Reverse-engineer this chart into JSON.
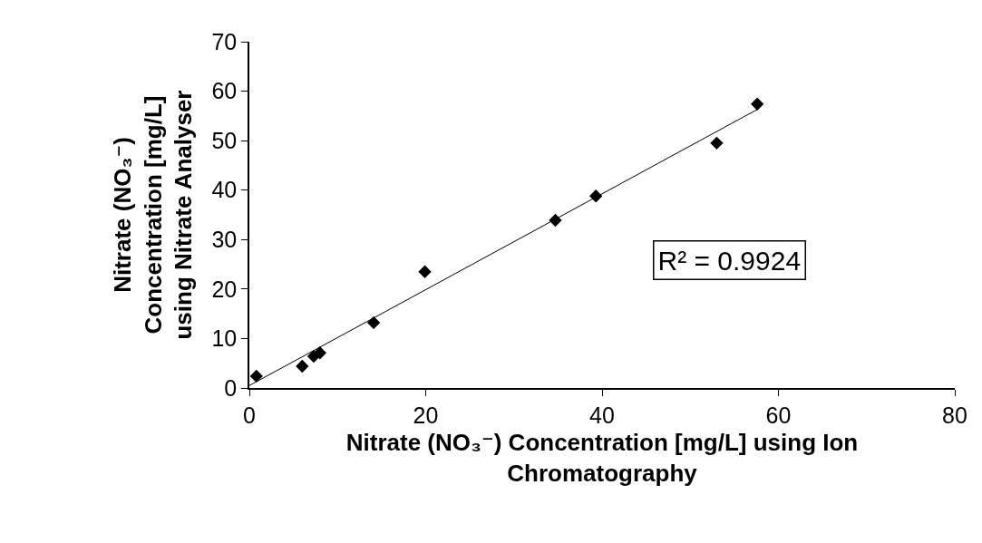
{
  "chart_data": {
    "type": "scatter",
    "xlabel": "Nitrate (NO₃⁻) Concentration [mg/L] using Ion\nChromatography",
    "ylabel": "Nitrate (NO₃⁻)\nConcentration [mg/L]\nusing Nitrate Analyser",
    "xlim": [
      0,
      80
    ],
    "xticks": [
      0,
      20,
      40,
      60,
      80
    ],
    "ylim": [
      0,
      70
    ],
    "yticks": [
      0,
      10,
      20,
      30,
      40,
      50,
      60,
      70
    ],
    "grid": false,
    "marker": "diamond",
    "annotations": [
      "R² = 0.9924"
    ],
    "series": [
      {
        "color": "#000000",
        "x": [
          0.8,
          6.0,
          7.3,
          8.0,
          14.1,
          19.9,
          34.7,
          39.3,
          53.0,
          57.6
        ],
        "values": [
          2.4,
          4.4,
          6.4,
          7.1,
          13.2,
          23.5,
          33.9,
          38.8,
          49.5,
          57.4
        ]
      },
      {
        "type": "line",
        "color": "#000000",
        "line_style": "solid",
        "marker": "none",
        "x": [
          0,
          57.7
        ],
        "values": [
          0.5,
          56.4
        ]
      }
    ]
  }
}
